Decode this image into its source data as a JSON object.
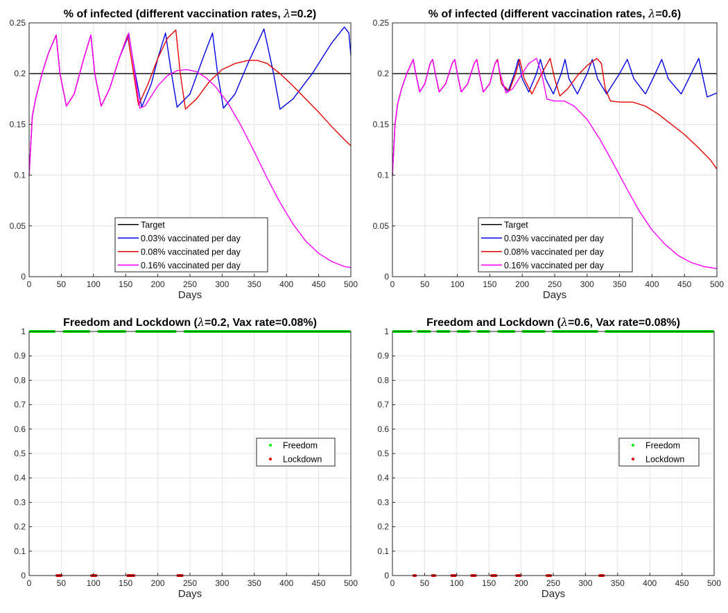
{
  "chart_data": [
    {
      "type": "line",
      "title_prefix": "% of infected (different vaccination rates,  ",
      "title_symbol": "λ",
      "title_suffix": "=0.2)",
      "xlabel": "Days",
      "ylabel": "",
      "xlim": [
        0,
        500
      ],
      "ylim": [
        0,
        0.25
      ],
      "xticks": [
        0,
        50,
        100,
        150,
        200,
        250,
        300,
        350,
        400,
        450,
        500
      ],
      "yticks": [
        0,
        0.05,
        0.1,
        0.15,
        0.2,
        0.25
      ],
      "grid": true,
      "legend_position": "bottom-center",
      "series": [
        {
          "name": "Target",
          "color": "#000000",
          "x": [
            0,
            500
          ],
          "y": [
            0.2,
            0.2
          ]
        },
        {
          "name": "0.03% vaccinated per day",
          "color": "#0000e6",
          "x": [
            0,
            5,
            10,
            20,
            30,
            42,
            48,
            58,
            70,
            85,
            96,
            102,
            112,
            125,
            140,
            155,
            165,
            175,
            190,
            200,
            212,
            220,
            230,
            250,
            270,
            285,
            293,
            302,
            320,
            340,
            365,
            380,
            390,
            410,
            440,
            470,
            490,
            497,
            500
          ],
          "y": [
            0.1,
            0.158,
            0.175,
            0.2,
            0.22,
            0.238,
            0.2,
            0.168,
            0.18,
            0.215,
            0.238,
            0.2,
            0.168,
            0.185,
            0.215,
            0.238,
            0.2,
            0.167,
            0.19,
            0.215,
            0.24,
            0.205,
            0.167,
            0.18,
            0.215,
            0.24,
            0.2,
            0.166,
            0.18,
            0.21,
            0.244,
            0.2,
            0.165,
            0.175,
            0.2,
            0.23,
            0.246,
            0.24,
            0.218
          ]
        },
        {
          "name": "0.08% vaccinated per day",
          "color": "#e60000",
          "x": [
            0,
            5,
            10,
            20,
            30,
            42,
            48,
            58,
            70,
            85,
            96,
            102,
            112,
            125,
            140,
            153,
            160,
            170,
            185,
            200,
            215,
            228,
            235,
            243,
            260,
            280,
            300,
            320,
            340,
            355,
            370,
            390,
            410,
            430,
            450,
            470,
            490,
            500
          ],
          "y": [
            0.1,
            0.158,
            0.175,
            0.2,
            0.22,
            0.238,
            0.2,
            0.168,
            0.18,
            0.215,
            0.238,
            0.2,
            0.168,
            0.185,
            0.215,
            0.238,
            0.21,
            0.169,
            0.19,
            0.215,
            0.235,
            0.243,
            0.2,
            0.165,
            0.175,
            0.192,
            0.204,
            0.21,
            0.213,
            0.213,
            0.21,
            0.2,
            0.188,
            0.175,
            0.162,
            0.148,
            0.135,
            0.129
          ]
        },
        {
          "name": "0.16% vaccinated per day",
          "color": "#ff00ff",
          "x": [
            0,
            5,
            10,
            20,
            30,
            42,
            48,
            58,
            70,
            85,
            96,
            102,
            112,
            125,
            140,
            155,
            162,
            172,
            180,
            190,
            200,
            215,
            230,
            245,
            260,
            275,
            290,
            310,
            330,
            350,
            370,
            390,
            410,
            430,
            450,
            470,
            490,
            500
          ],
          "y": [
            0.1,
            0.158,
            0.175,
            0.2,
            0.22,
            0.238,
            0.2,
            0.168,
            0.18,
            0.215,
            0.238,
            0.2,
            0.168,
            0.185,
            0.215,
            0.24,
            0.21,
            0.166,
            0.168,
            0.178,
            0.188,
            0.198,
            0.203,
            0.204,
            0.202,
            0.196,
            0.187,
            0.17,
            0.148,
            0.123,
            0.097,
            0.073,
            0.052,
            0.035,
            0.023,
            0.015,
            0.01,
            0.009
          ]
        }
      ]
    },
    {
      "type": "line",
      "title_prefix": "% of infected (different vaccination rates,  ",
      "title_symbol": "λ",
      "title_suffix": "=0.6)",
      "xlabel": "Days",
      "ylabel": "",
      "xlim": [
        0,
        500
      ],
      "ylim": [
        0,
        0.25
      ],
      "xticks": [
        0,
        50,
        100,
        150,
        200,
        250,
        300,
        350,
        400,
        450,
        500
      ],
      "yticks": [
        0,
        0.05,
        0.1,
        0.15,
        0.2,
        0.25
      ],
      "grid": true,
      "legend_position": "bottom-center",
      "series": [
        {
          "name": "Target",
          "color": "#000000",
          "x": [
            0,
            500
          ],
          "y": [
            0.2,
            0.2
          ]
        },
        {
          "name": "0.03% vaccinated per day",
          "color": "#0000e6",
          "x": [
            0,
            4,
            8,
            14,
            22,
            32,
            36,
            42,
            50,
            58,
            62,
            66,
            72,
            82,
            92,
            96,
            100,
            106,
            116,
            126,
            130,
            134,
            140,
            150,
            158,
            162,
            168,
            178,
            188,
            194,
            200,
            210,
            222,
            228,
            236,
            248,
            260,
            266,
            272,
            285,
            300,
            308,
            316,
            330,
            350,
            362,
            372,
            390,
            405,
            415,
            425,
            445,
            472,
            485,
            500
          ],
          "y": [
            0.1,
            0.15,
            0.17,
            0.185,
            0.2,
            0.214,
            0.2,
            0.182,
            0.19,
            0.21,
            0.214,
            0.2,
            0.182,
            0.19,
            0.21,
            0.214,
            0.2,
            0.182,
            0.19,
            0.21,
            0.214,
            0.2,
            0.182,
            0.19,
            0.21,
            0.214,
            0.19,
            0.182,
            0.2,
            0.214,
            0.195,
            0.182,
            0.2,
            0.214,
            0.195,
            0.18,
            0.2,
            0.214,
            0.195,
            0.18,
            0.2,
            0.214,
            0.195,
            0.18,
            0.2,
            0.214,
            0.195,
            0.18,
            0.2,
            0.214,
            0.195,
            0.18,
            0.215,
            0.177,
            0.181
          ]
        },
        {
          "name": "0.08% vaccinated per day",
          "color": "#e60000",
          "x": [
            0,
            4,
            8,
            14,
            22,
            32,
            36,
            42,
            50,
            58,
            62,
            66,
            72,
            82,
            92,
            96,
            100,
            106,
            116,
            126,
            130,
            134,
            140,
            150,
            158,
            162,
            168,
            180,
            190,
            196,
            203,
            215,
            230,
            243,
            250,
            258,
            270,
            285,
            300,
            315,
            322,
            328,
            336,
            350,
            370,
            390,
            410,
            430,
            450,
            470,
            490,
            500
          ],
          "y": [
            0.1,
            0.15,
            0.17,
            0.185,
            0.2,
            0.214,
            0.2,
            0.182,
            0.19,
            0.21,
            0.214,
            0.2,
            0.182,
            0.19,
            0.21,
            0.214,
            0.2,
            0.182,
            0.19,
            0.21,
            0.214,
            0.2,
            0.182,
            0.19,
            0.21,
            0.214,
            0.19,
            0.183,
            0.2,
            0.214,
            0.195,
            0.18,
            0.2,
            0.215,
            0.195,
            0.178,
            0.185,
            0.198,
            0.208,
            0.215,
            0.21,
            0.185,
            0.173,
            0.172,
            0.172,
            0.168,
            0.16,
            0.15,
            0.14,
            0.128,
            0.115,
            0.106
          ]
        },
        {
          "name": "0.16% vaccinated per day",
          "color": "#ff00ff",
          "x": [
            0,
            4,
            8,
            14,
            22,
            32,
            36,
            42,
            50,
            58,
            62,
            66,
            72,
            82,
            92,
            96,
            100,
            106,
            116,
            126,
            130,
            134,
            140,
            150,
            158,
            162,
            166,
            175,
            185,
            198,
            210,
            222,
            230,
            238,
            250,
            265,
            280,
            300,
            320,
            340,
            360,
            380,
            400,
            420,
            440,
            460,
            480,
            500
          ],
          "y": [
            0.1,
            0.15,
            0.17,
            0.185,
            0.2,
            0.214,
            0.2,
            0.182,
            0.19,
            0.21,
            0.214,
            0.2,
            0.182,
            0.19,
            0.21,
            0.214,
            0.2,
            0.182,
            0.19,
            0.21,
            0.214,
            0.2,
            0.182,
            0.19,
            0.21,
            0.213,
            0.2,
            0.181,
            0.185,
            0.198,
            0.21,
            0.215,
            0.2,
            0.175,
            0.173,
            0.173,
            0.168,
            0.155,
            0.135,
            0.112,
            0.088,
            0.065,
            0.046,
            0.032,
            0.021,
            0.014,
            0.01,
            0.008
          ]
        }
      ]
    },
    {
      "type": "scatter",
      "title_prefix": "Freedom and Lockdown (",
      "title_symbol": "λ",
      "title_suffix": "=0.2, Vax rate=0.08%)",
      "xlabel": "Days",
      "ylabel": "",
      "xlim": [
        0,
        500
      ],
      "ylim": [
        0,
        1
      ],
      "xticks": [
        0,
        50,
        100,
        150,
        200,
        250,
        300,
        350,
        400,
        450,
        500
      ],
      "yticks": [
        0,
        0.1,
        0.2,
        0.3,
        0.4,
        0.5,
        0.6,
        0.7,
        0.8,
        0.9,
        1
      ],
      "yticklabels": [
        "0",
        "0.1",
        "0.2",
        "0.3",
        "0.4",
        "0.5",
        "0.6",
        "0.7",
        "0.8",
        "0.9",
        "1"
      ],
      "grid": true,
      "legend_position": "right-center",
      "series": [
        {
          "name": "Freedom",
          "color": "#00ee00",
          "y": 1,
          "intervals": [
            [
              0,
              41
            ],
            [
              52,
              95
            ],
            [
              106,
              151
            ],
            [
              165,
              229
            ],
            [
              240,
              500
            ]
          ]
        },
        {
          "name": "Lockdown",
          "color": "#e60000",
          "y": 0,
          "intervals": [
            [
              41,
              52
            ],
            [
              95,
              106
            ],
            [
              151,
              165
            ],
            [
              229,
              240
            ]
          ]
        }
      ]
    },
    {
      "type": "scatter",
      "title_prefix": "Freedom and Lockdown (",
      "title_symbol": "λ",
      "title_suffix": "=0.6, Vax rate=0.08%)",
      "xlabel": "Days",
      "ylabel": "",
      "xlim": [
        0,
        500
      ],
      "ylim": [
        0,
        1
      ],
      "xticks": [
        0,
        50,
        100,
        150,
        200,
        250,
        300,
        350,
        400,
        450,
        500
      ],
      "yticks": [
        0,
        0.1,
        0.2,
        0.3,
        0.4,
        0.5,
        0.6,
        0.7,
        0.8,
        0.9,
        1
      ],
      "yticklabels": [
        "0",
        "0.1",
        "0.2",
        "0.3",
        "0.4",
        "0.5",
        "0.6",
        "0.7",
        "0.8",
        "0.9",
        "1"
      ],
      "grid": true,
      "legend_position": "right-center",
      "series": [
        {
          "name": "Freedom",
          "color": "#00ee00",
          "y": 1,
          "intervals": [
            [
              0,
              31
            ],
            [
              38,
              60
            ],
            [
              68,
              90
            ],
            [
              100,
              121
            ],
            [
              131,
              152
            ],
            [
              163,
              191
            ],
            [
              201,
              238
            ],
            [
              248,
              320
            ],
            [
              330,
              500
            ]
          ]
        },
        {
          "name": "Lockdown",
          "color": "#e60000",
          "y": 0,
          "intervals": [
            [
              31,
              38
            ],
            [
              60,
              68
            ],
            [
              90,
              100
            ],
            [
              121,
              131
            ],
            [
              152,
              163
            ],
            [
              191,
              201
            ],
            [
              238,
              248
            ],
            [
              320,
              330
            ]
          ]
        }
      ]
    }
  ]
}
